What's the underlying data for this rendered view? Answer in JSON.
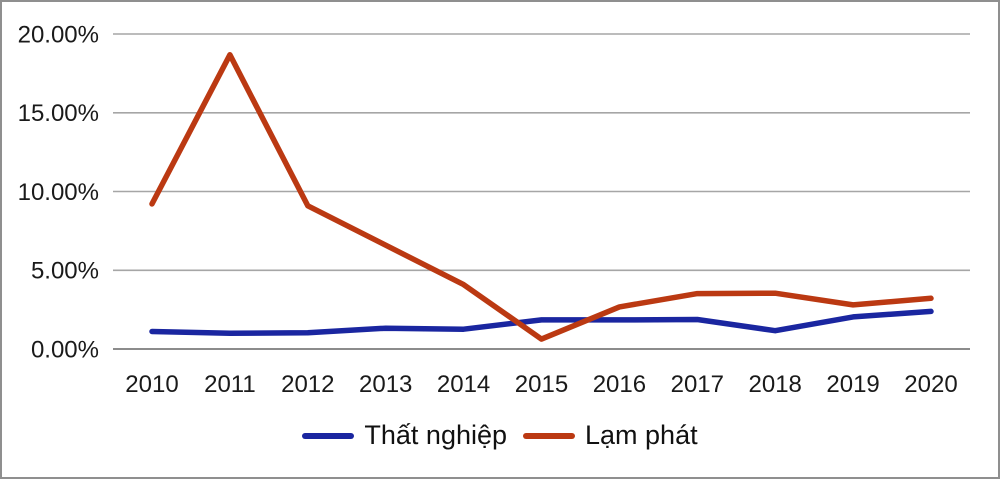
{
  "figure": {
    "background": "#ffffff",
    "border_color": "#8f8f8f",
    "gridline_color": "#a6a6a6",
    "text_color": "#1a1a1a"
  },
  "chart_data": {
    "type": "line",
    "title": "",
    "xlabel": "",
    "ylabel": "",
    "categories": [
      "2010",
      "2011",
      "2012",
      "2013",
      "2014",
      "2015",
      "2016",
      "2017",
      "2018",
      "2019",
      "2020"
    ],
    "series": [
      {
        "name": "Thất nghiệp",
        "color": "#1a26a0",
        "values": [
          1.11,
          1.0,
          1.03,
          1.32,
          1.26,
          1.85,
          1.85,
          1.87,
          1.16,
          2.04,
          2.39
        ]
      },
      {
        "name": "Lạm phát",
        "color": "#bb3912",
        "values": [
          9.21,
          18.68,
          9.09,
          6.59,
          4.09,
          0.63,
          2.67,
          3.52,
          3.54,
          2.8,
          3.22
        ]
      }
    ],
    "ylim": [
      0,
      20
    ],
    "yticks": [
      0,
      5,
      10,
      15,
      20
    ],
    "ytick_labels": [
      "0.00%",
      "5.00%",
      "10.00%",
      "15.00%",
      "20.00%"
    ],
    "grid": true,
    "legend_position": "bottom-center"
  }
}
